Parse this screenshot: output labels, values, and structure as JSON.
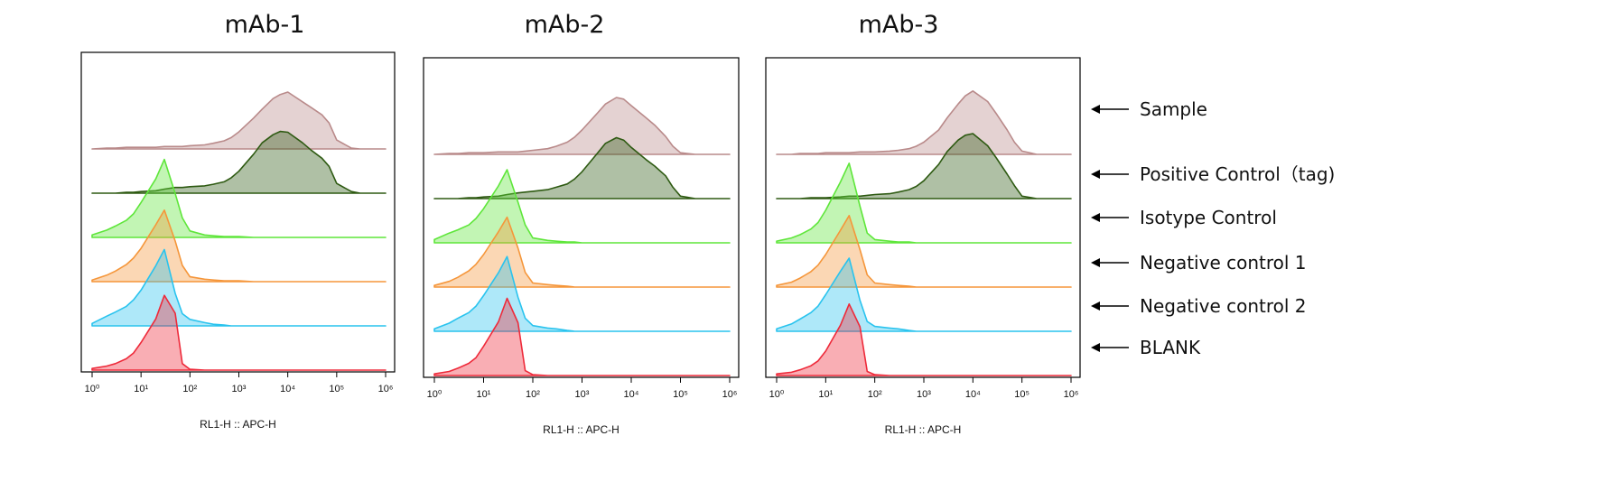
{
  "chart_data": [
    {
      "type": "histogram-overlay",
      "title": "mAb-1",
      "x_label": "RL1-H :: APC-H",
      "log_x": true,
      "xlim": [
        1,
        1000000
      ],
      "xticks": [
        {
          "value": 1,
          "label": "10⁰"
        },
        {
          "value": 10,
          "label": "10¹"
        },
        {
          "value": 100,
          "label": "10²"
        },
        {
          "value": 1000,
          "label": "10³"
        },
        {
          "value": 10000,
          "label": "10⁴"
        },
        {
          "value": 100000,
          "label": "10⁵"
        },
        {
          "value": 1000000,
          "label": "10⁶"
        }
      ],
      "x": [
        1,
        2,
        3,
        5,
        7,
        10,
        20,
        30,
        50,
        70,
        100,
        200,
        300,
        500,
        700,
        1000,
        2000,
        3000,
        5000,
        7000,
        10000,
        20000,
        30000,
        50000,
        70000,
        100000,
        200000,
        300000,
        500000,
        700000,
        1000000
      ],
      "series": [
        {
          "color": "#b98a8a",
          "values": [
            0,
            1,
            1,
            2,
            2,
            2,
            2,
            3,
            3,
            3,
            4,
            5,
            7,
            10,
            14,
            21,
            38,
            49,
            62,
            67,
            70,
            58,
            51,
            42,
            32,
            11,
            1,
            0,
            0,
            0,
            0
          ]
        },
        {
          "color": "#2e5a12",
          "values": [
            0,
            0,
            0,
            1,
            1,
            2,
            3,
            5,
            7,
            7,
            8,
            9,
            11,
            14,
            19,
            27,
            48,
            62,
            72,
            76,
            75,
            62,
            53,
            43,
            33,
            12,
            2,
            0,
            0,
            0,
            0
          ]
        },
        {
          "color": "#5ee63a",
          "values": [
            3,
            9,
            14,
            21,
            29,
            43,
            72,
            96,
            54,
            24,
            8,
            3,
            2,
            1,
            1,
            1,
            0,
            0,
            0,
            0,
            0,
            0,
            0,
            0,
            0,
            0,
            0,
            0,
            0,
            0,
            0
          ]
        },
        {
          "color": "#f5963a",
          "values": [
            2,
            8,
            13,
            21,
            29,
            41,
            70,
            88,
            50,
            20,
            6,
            3,
            2,
            1,
            1,
            1,
            0,
            0,
            0,
            0,
            0,
            0,
            0,
            0,
            0,
            0,
            0,
            0,
            0,
            0,
            0
          ]
        },
        {
          "color": "#29c3ee",
          "values": [
            3,
            12,
            17,
            24,
            32,
            44,
            74,
            94,
            40,
            15,
            8,
            4,
            2,
            1,
            0,
            0,
            0,
            0,
            0,
            0,
            0,
            0,
            0,
            0,
            0,
            0,
            0,
            0,
            0,
            0,
            0
          ]
        },
        {
          "color": "#ee2a3a",
          "values": [
            2,
            5,
            8,
            14,
            21,
            34,
            63,
            92,
            70,
            8,
            1,
            0,
            0,
            0,
            0,
            0,
            0,
            0,
            0,
            0,
            0,
            0,
            0,
            0,
            0,
            0,
            0,
            0,
            0,
            0,
            0
          ]
        }
      ]
    },
    {
      "type": "histogram-overlay",
      "title": "mAb-2",
      "x_label": "RL1-H :: APC-H",
      "log_x": true,
      "xlim": [
        1,
        1000000
      ],
      "xticks": [
        {
          "value": 1,
          "label": "10⁰"
        },
        {
          "value": 10,
          "label": "10¹"
        },
        {
          "value": 100,
          "label": "10²"
        },
        {
          "value": 1000,
          "label": "10³"
        },
        {
          "value": 10000,
          "label": "10⁴"
        },
        {
          "value": 100000,
          "label": "10⁵"
        },
        {
          "value": 1000000,
          "label": "10⁶"
        }
      ],
      "x": [
        1,
        2,
        3,
        5,
        7,
        10,
        20,
        30,
        50,
        70,
        100,
        200,
        300,
        500,
        700,
        1000,
        2000,
        3000,
        5000,
        7000,
        10000,
        20000,
        30000,
        50000,
        70000,
        100000,
        200000,
        300000,
        500000,
        700000,
        1000000
      ],
      "series": [
        {
          "color": "#b98a8a",
          "values": [
            0,
            1,
            1,
            2,
            2,
            2,
            3,
            3,
            3,
            4,
            5,
            7,
            10,
            15,
            21,
            30,
            50,
            62,
            70,
            68,
            60,
            45,
            36,
            22,
            10,
            2,
            0,
            0,
            0,
            0,
            0
          ]
        },
        {
          "color": "#2e5a12",
          "values": [
            0,
            0,
            0,
            1,
            1,
            2,
            3,
            5,
            7,
            8,
            9,
            11,
            14,
            18,
            24,
            33,
            55,
            68,
            75,
            72,
            63,
            48,
            40,
            28,
            14,
            3,
            0,
            0,
            0,
            0,
            0
          ]
        },
        {
          "color": "#5ee63a",
          "values": [
            4,
            12,
            16,
            22,
            30,
            42,
            70,
            90,
            50,
            22,
            6,
            3,
            2,
            1,
            1,
            0,
            0,
            0,
            0,
            0,
            0,
            0,
            0,
            0,
            0,
            0,
            0,
            0,
            0,
            0,
            0
          ]
        },
        {
          "color": "#f5963a",
          "values": [
            2,
            7,
            12,
            20,
            28,
            40,
            68,
            86,
            48,
            18,
            5,
            3,
            2,
            1,
            0,
            0,
            0,
            0,
            0,
            0,
            0,
            0,
            0,
            0,
            0,
            0,
            0,
            0,
            0,
            0,
            0
          ]
        },
        {
          "color": "#29c3ee",
          "values": [
            3,
            10,
            16,
            23,
            31,
            44,
            72,
            92,
            42,
            16,
            7,
            4,
            3,
            1,
            0,
            0,
            0,
            0,
            0,
            0,
            0,
            0,
            0,
            0,
            0,
            0,
            0,
            0,
            0,
            0,
            0
          ]
        },
        {
          "color": "#ee2a3a",
          "values": [
            2,
            5,
            9,
            15,
            22,
            36,
            66,
            95,
            65,
            6,
            1,
            0,
            0,
            0,
            0,
            0,
            0,
            0,
            0,
            0,
            0,
            0,
            0,
            0,
            0,
            0,
            0,
            0,
            0,
            0,
            0
          ]
        }
      ]
    },
    {
      "type": "histogram-overlay",
      "title": "mAb-3",
      "x_label": "RL1-H :: APC-H",
      "log_x": true,
      "xlim": [
        1,
        1000000
      ],
      "xticks": [
        {
          "value": 1,
          "label": "10⁰"
        },
        {
          "value": 10,
          "label": "10¹"
        },
        {
          "value": 100,
          "label": "10²"
        },
        {
          "value": 1000,
          "label": "10³"
        },
        {
          "value": 10000,
          "label": "10⁴"
        },
        {
          "value": 100000,
          "label": "10⁵"
        },
        {
          "value": 1000000,
          "label": "10⁶"
        }
      ],
      "x": [
        1,
        2,
        3,
        5,
        7,
        10,
        20,
        30,
        50,
        70,
        100,
        200,
        300,
        500,
        700,
        1000,
        2000,
        3000,
        5000,
        7000,
        10000,
        20000,
        30000,
        50000,
        70000,
        100000,
        200000,
        300000,
        500000,
        700000,
        1000000
      ],
      "series": [
        {
          "name": "Sample",
          "color": "#b98a8a",
          "values": [
            0,
            0,
            1,
            1,
            1,
            2,
            2,
            2,
            3,
            3,
            3,
            4,
            5,
            7,
            10,
            15,
            30,
            45,
            62,
            72,
            78,
            65,
            50,
            30,
            15,
            4,
            0,
            0,
            0,
            0,
            0
          ]
        },
        {
          "name": "Positive Control（tag)",
          "color": "#2e5a12",
          "values": [
            0,
            0,
            0,
            1,
            1,
            1,
            2,
            3,
            3,
            4,
            5,
            6,
            8,
            11,
            15,
            22,
            42,
            58,
            72,
            78,
            80,
            65,
            50,
            30,
            16,
            3,
            0,
            0,
            0,
            0,
            0
          ]
        },
        {
          "name": "Isotype Control",
          "color": "#5ee63a",
          "values": [
            2,
            6,
            10,
            17,
            25,
            40,
            75,
            98,
            45,
            12,
            4,
            2,
            1,
            1,
            0,
            0,
            0,
            0,
            0,
            0,
            0,
            0,
            0,
            0,
            0,
            0,
            0,
            0,
            0,
            0,
            0
          ]
        },
        {
          "name": "Negative control 1",
          "color": "#f5963a",
          "values": [
            2,
            6,
            11,
            19,
            27,
            40,
            70,
            88,
            46,
            15,
            5,
            3,
            2,
            1,
            0,
            0,
            0,
            0,
            0,
            0,
            0,
            0,
            0,
            0,
            0,
            0,
            0,
            0,
            0,
            0,
            0
          ]
        },
        {
          "name": "Negative control 2",
          "color": "#29c3ee",
          "values": [
            3,
            9,
            15,
            23,
            31,
            45,
            74,
            90,
            38,
            12,
            6,
            4,
            3,
            1,
            0,
            0,
            0,
            0,
            0,
            0,
            0,
            0,
            0,
            0,
            0,
            0,
            0,
            0,
            0,
            0,
            0
          ]
        },
        {
          "name": "BLANK",
          "color": "#ee2a3a",
          "values": [
            2,
            4,
            7,
            12,
            18,
            30,
            62,
            88,
            60,
            5,
            1,
            0,
            0,
            0,
            0,
            0,
            0,
            0,
            0,
            0,
            0,
            0,
            0,
            0,
            0,
            0,
            0,
            0,
            0,
            0,
            0
          ]
        }
      ]
    }
  ]
}
